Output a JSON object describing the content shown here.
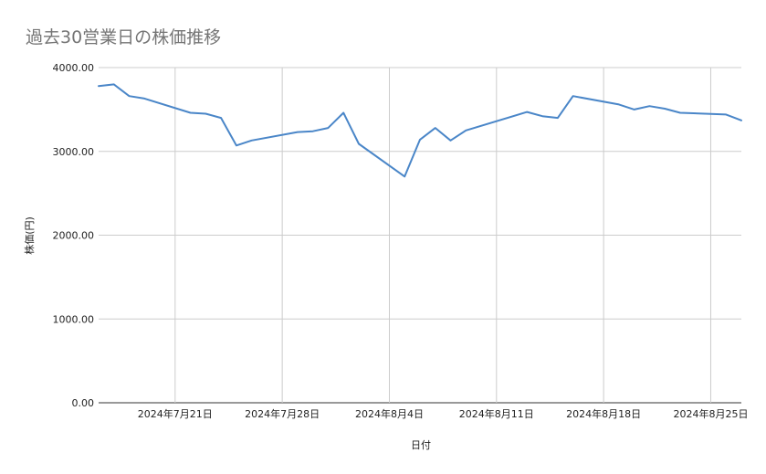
{
  "chart_data": {
    "type": "line",
    "title": "過去30営業日の株価推移",
    "xlabel": "日付",
    "ylabel": "株価(円)",
    "ylim": [
      0,
      4000
    ],
    "yticks": [
      "0.00",
      "1000.00",
      "2000.00",
      "3000.00",
      "4000.00"
    ],
    "xticks": [
      {
        "date": "2024-07-21",
        "label": "2024年7月21日"
      },
      {
        "date": "2024-07-28",
        "label": "2024年7月28日"
      },
      {
        "date": "2024-08-04",
        "label": "2024年8月4日"
      },
      {
        "date": "2024-08-11",
        "label": "2024年8月11日"
      },
      {
        "date": "2024-08-18",
        "label": "2024年8月18日"
      },
      {
        "date": "2024-08-25",
        "label": "2024年8月25日"
      }
    ],
    "xlim": [
      "2024-07-16",
      "2024-08-26"
    ],
    "grid": true,
    "series": [
      {
        "color": "#4a86c8",
        "points": [
          {
            "x": "2024-07-16",
            "y": 3780
          },
          {
            "x": "2024-07-17",
            "y": 3800
          },
          {
            "x": "2024-07-18",
            "y": 3660
          },
          {
            "x": "2024-07-19",
            "y": 3630
          },
          {
            "x": "2024-07-22",
            "y": 3460
          },
          {
            "x": "2024-07-23",
            "y": 3450
          },
          {
            "x": "2024-07-24",
            "y": 3400
          },
          {
            "x": "2024-07-25",
            "y": 3070
          },
          {
            "x": "2024-07-26",
            "y": 3130
          },
          {
            "x": "2024-07-29",
            "y": 3230
          },
          {
            "x": "2024-07-30",
            "y": 3240
          },
          {
            "x": "2024-07-31",
            "y": 3280
          },
          {
            "x": "2024-08-01",
            "y": 3460
          },
          {
            "x": "2024-08-02",
            "y": 3090
          },
          {
            "x": "2024-08-05",
            "y": 2700
          },
          {
            "x": "2024-08-06",
            "y": 3140
          },
          {
            "x": "2024-08-07",
            "y": 3280
          },
          {
            "x": "2024-08-08",
            "y": 3130
          },
          {
            "x": "2024-08-09",
            "y": 3250
          },
          {
            "x": "2024-08-13",
            "y": 3470
          },
          {
            "x": "2024-08-14",
            "y": 3420
          },
          {
            "x": "2024-08-15",
            "y": 3400
          },
          {
            "x": "2024-08-16",
            "y": 3660
          },
          {
            "x": "2024-08-19",
            "y": 3560
          },
          {
            "x": "2024-08-20",
            "y": 3500
          },
          {
            "x": "2024-08-21",
            "y": 3540
          },
          {
            "x": "2024-08-22",
            "y": 3510
          },
          {
            "x": "2024-08-23",
            "y": 3460
          },
          {
            "x": "2024-08-26",
            "y": 3440
          },
          {
            "x": "2024-08-27",
            "y": 3370
          }
        ]
      }
    ]
  }
}
